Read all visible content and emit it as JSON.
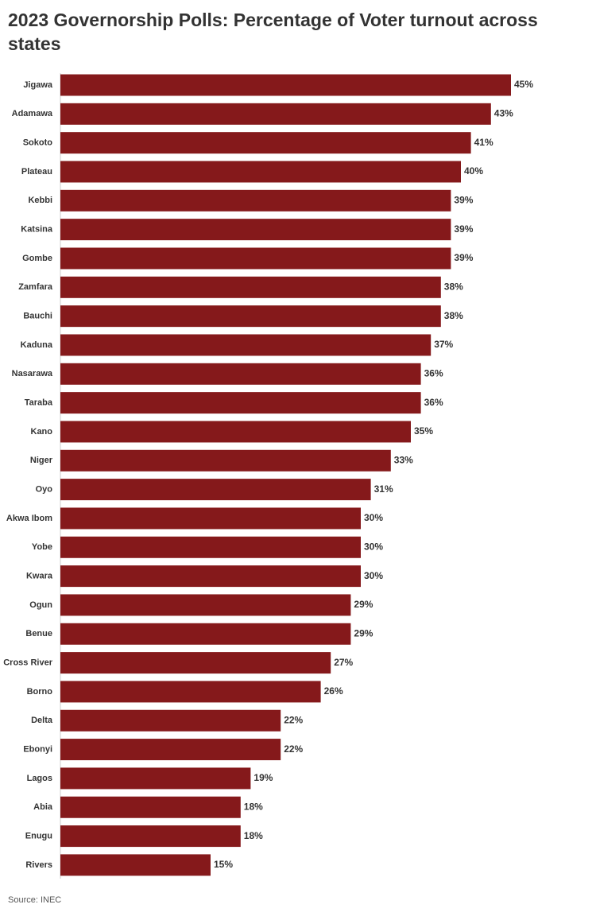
{
  "chart_data": {
    "type": "bar",
    "orientation": "horizontal",
    "title": "2023 Governorship Polls: Percentage of Voter turnout across states",
    "source": "Source: INEC",
    "color": "#85191b",
    "categories": [
      "Jigawa",
      "Adamawa",
      "Sokoto",
      "Plateau",
      "Kebbi",
      "Katsina",
      "Gombe",
      "Zamfara",
      "Bauchi",
      "Kaduna",
      "Nasarawa",
      "Taraba",
      "Kano",
      "Niger",
      "Oyo",
      "Akwa Ibom",
      "Yobe",
      "Kwara",
      "Ogun",
      "Benue",
      "Cross River",
      "Borno",
      "Delta",
      "Ebonyi",
      "Lagos",
      "Abia",
      "Enugu",
      "Rivers"
    ],
    "values": [
      45,
      43,
      41,
      40,
      39,
      39,
      39,
      38,
      38,
      37,
      36,
      36,
      35,
      33,
      31,
      30,
      30,
      30,
      29,
      29,
      27,
      26,
      22,
      22,
      19,
      18,
      18,
      15
    ],
    "value_labels": [
      "45%",
      "43%",
      "41%",
      "40%",
      "39%",
      "39%",
      "39%",
      "38%",
      "38%",
      "37%",
      "36%",
      "36%",
      "35%",
      "33%",
      "31%",
      "30%",
      "30%",
      "30%",
      "29%",
      "29%",
      "27%",
      "26%",
      "22%",
      "22%",
      "19%",
      "18%",
      "18%",
      "15%"
    ]
  }
}
